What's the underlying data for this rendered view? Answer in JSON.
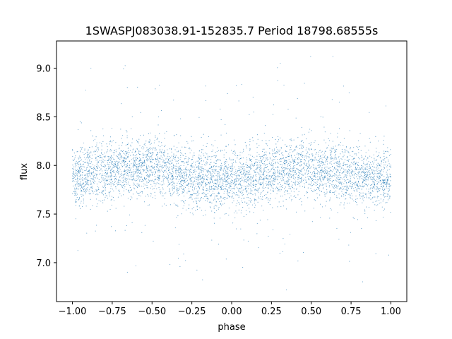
{
  "chart_data": {
    "type": "scatter",
    "title": "1SWASPJ083038.91-152835.7 Period 18798.68555s",
    "xlabel": "phase",
    "ylabel": "flux",
    "xlim": [
      -1.1,
      1.1
    ],
    "ylim": [
      6.6,
      9.28
    ],
    "xticks": [
      -1.0,
      -0.75,
      -0.5,
      -0.25,
      0.0,
      0.25,
      0.5,
      0.75,
      1.0
    ],
    "xtick_labels": [
      "−1.00",
      "−0.75",
      "−0.50",
      "−0.25",
      "0.00",
      "0.25",
      "0.50",
      "0.75",
      "1.00"
    ],
    "yticks": [
      7.0,
      7.5,
      8.0,
      8.5,
      9.0
    ],
    "ytick_labels": [
      "7.0",
      "7.5",
      "8.0",
      "8.5",
      "9.0"
    ],
    "grid": false,
    "point_color": "#1f77b4",
    "series": [
      {
        "phase_range": [
          -1.0,
          1.0
        ],
        "trend": {
          "phase": [
            -1.0,
            -0.75,
            -0.5,
            -0.25,
            0.0,
            0.25,
            0.5,
            0.75,
            1.0
          ],
          "flux": [
            7.88,
            7.96,
            7.99,
            7.88,
            7.84,
            7.93,
            7.99,
            7.9,
            7.86
          ]
        },
        "typical_scatter": 0.15,
        "flux_extent": [
          6.72,
          9.12
        ]
      }
    ]
  }
}
